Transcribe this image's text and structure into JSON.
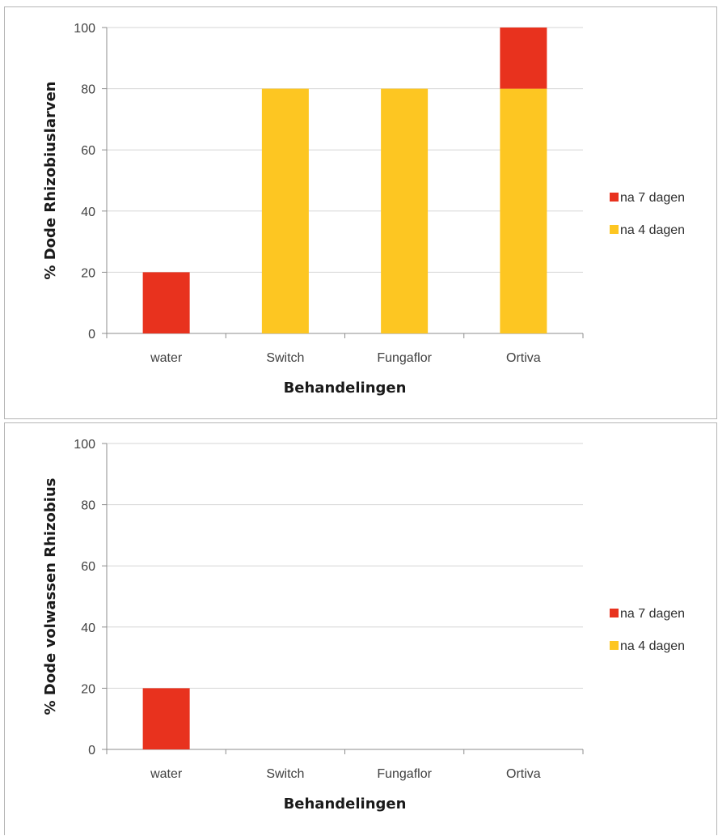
{
  "colors": {
    "na7": "#e8321e",
    "na4": "#fdc622"
  },
  "chart_data": [
    {
      "type": "bar",
      "stacked": true,
      "categories": [
        "water",
        "Switch",
        "Fungaflor",
        "Ortiva"
      ],
      "series": [
        {
          "name": "na 4 dagen",
          "values": [
            0,
            80,
            80,
            80
          ]
        },
        {
          "name": "na 7 dagen",
          "values": [
            20,
            0,
            0,
            20
          ]
        }
      ],
      "xlabel": "Behandelingen",
      "ylabel": "% Dode Rhizobiuslarven",
      "ylim": [
        0,
        100
      ],
      "yticks": [
        0,
        20,
        40,
        60,
        80,
        100
      ],
      "legend": [
        {
          "label": "na 7 dagen"
        },
        {
          "label": "na 4 dagen"
        }
      ],
      "legend_position": "right",
      "grid": true
    },
    {
      "type": "bar",
      "stacked": true,
      "categories": [
        "water",
        "Switch",
        "Fungaflor",
        "Ortiva"
      ],
      "series": [
        {
          "name": "na 4 dagen",
          "values": [
            0,
            0,
            0,
            0
          ]
        },
        {
          "name": "na 7 dagen",
          "values": [
            20,
            0,
            0,
            0
          ]
        }
      ],
      "xlabel": "Behandelingen",
      "ylabel": "% Dode volwassen Rhizobius",
      "ylim": [
        0,
        100
      ],
      "yticks": [
        0,
        20,
        40,
        60,
        80,
        100
      ],
      "legend": [
        {
          "label": "na 7 dagen"
        },
        {
          "label": "na 4 dagen"
        }
      ],
      "legend_position": "right",
      "grid": true
    }
  ]
}
